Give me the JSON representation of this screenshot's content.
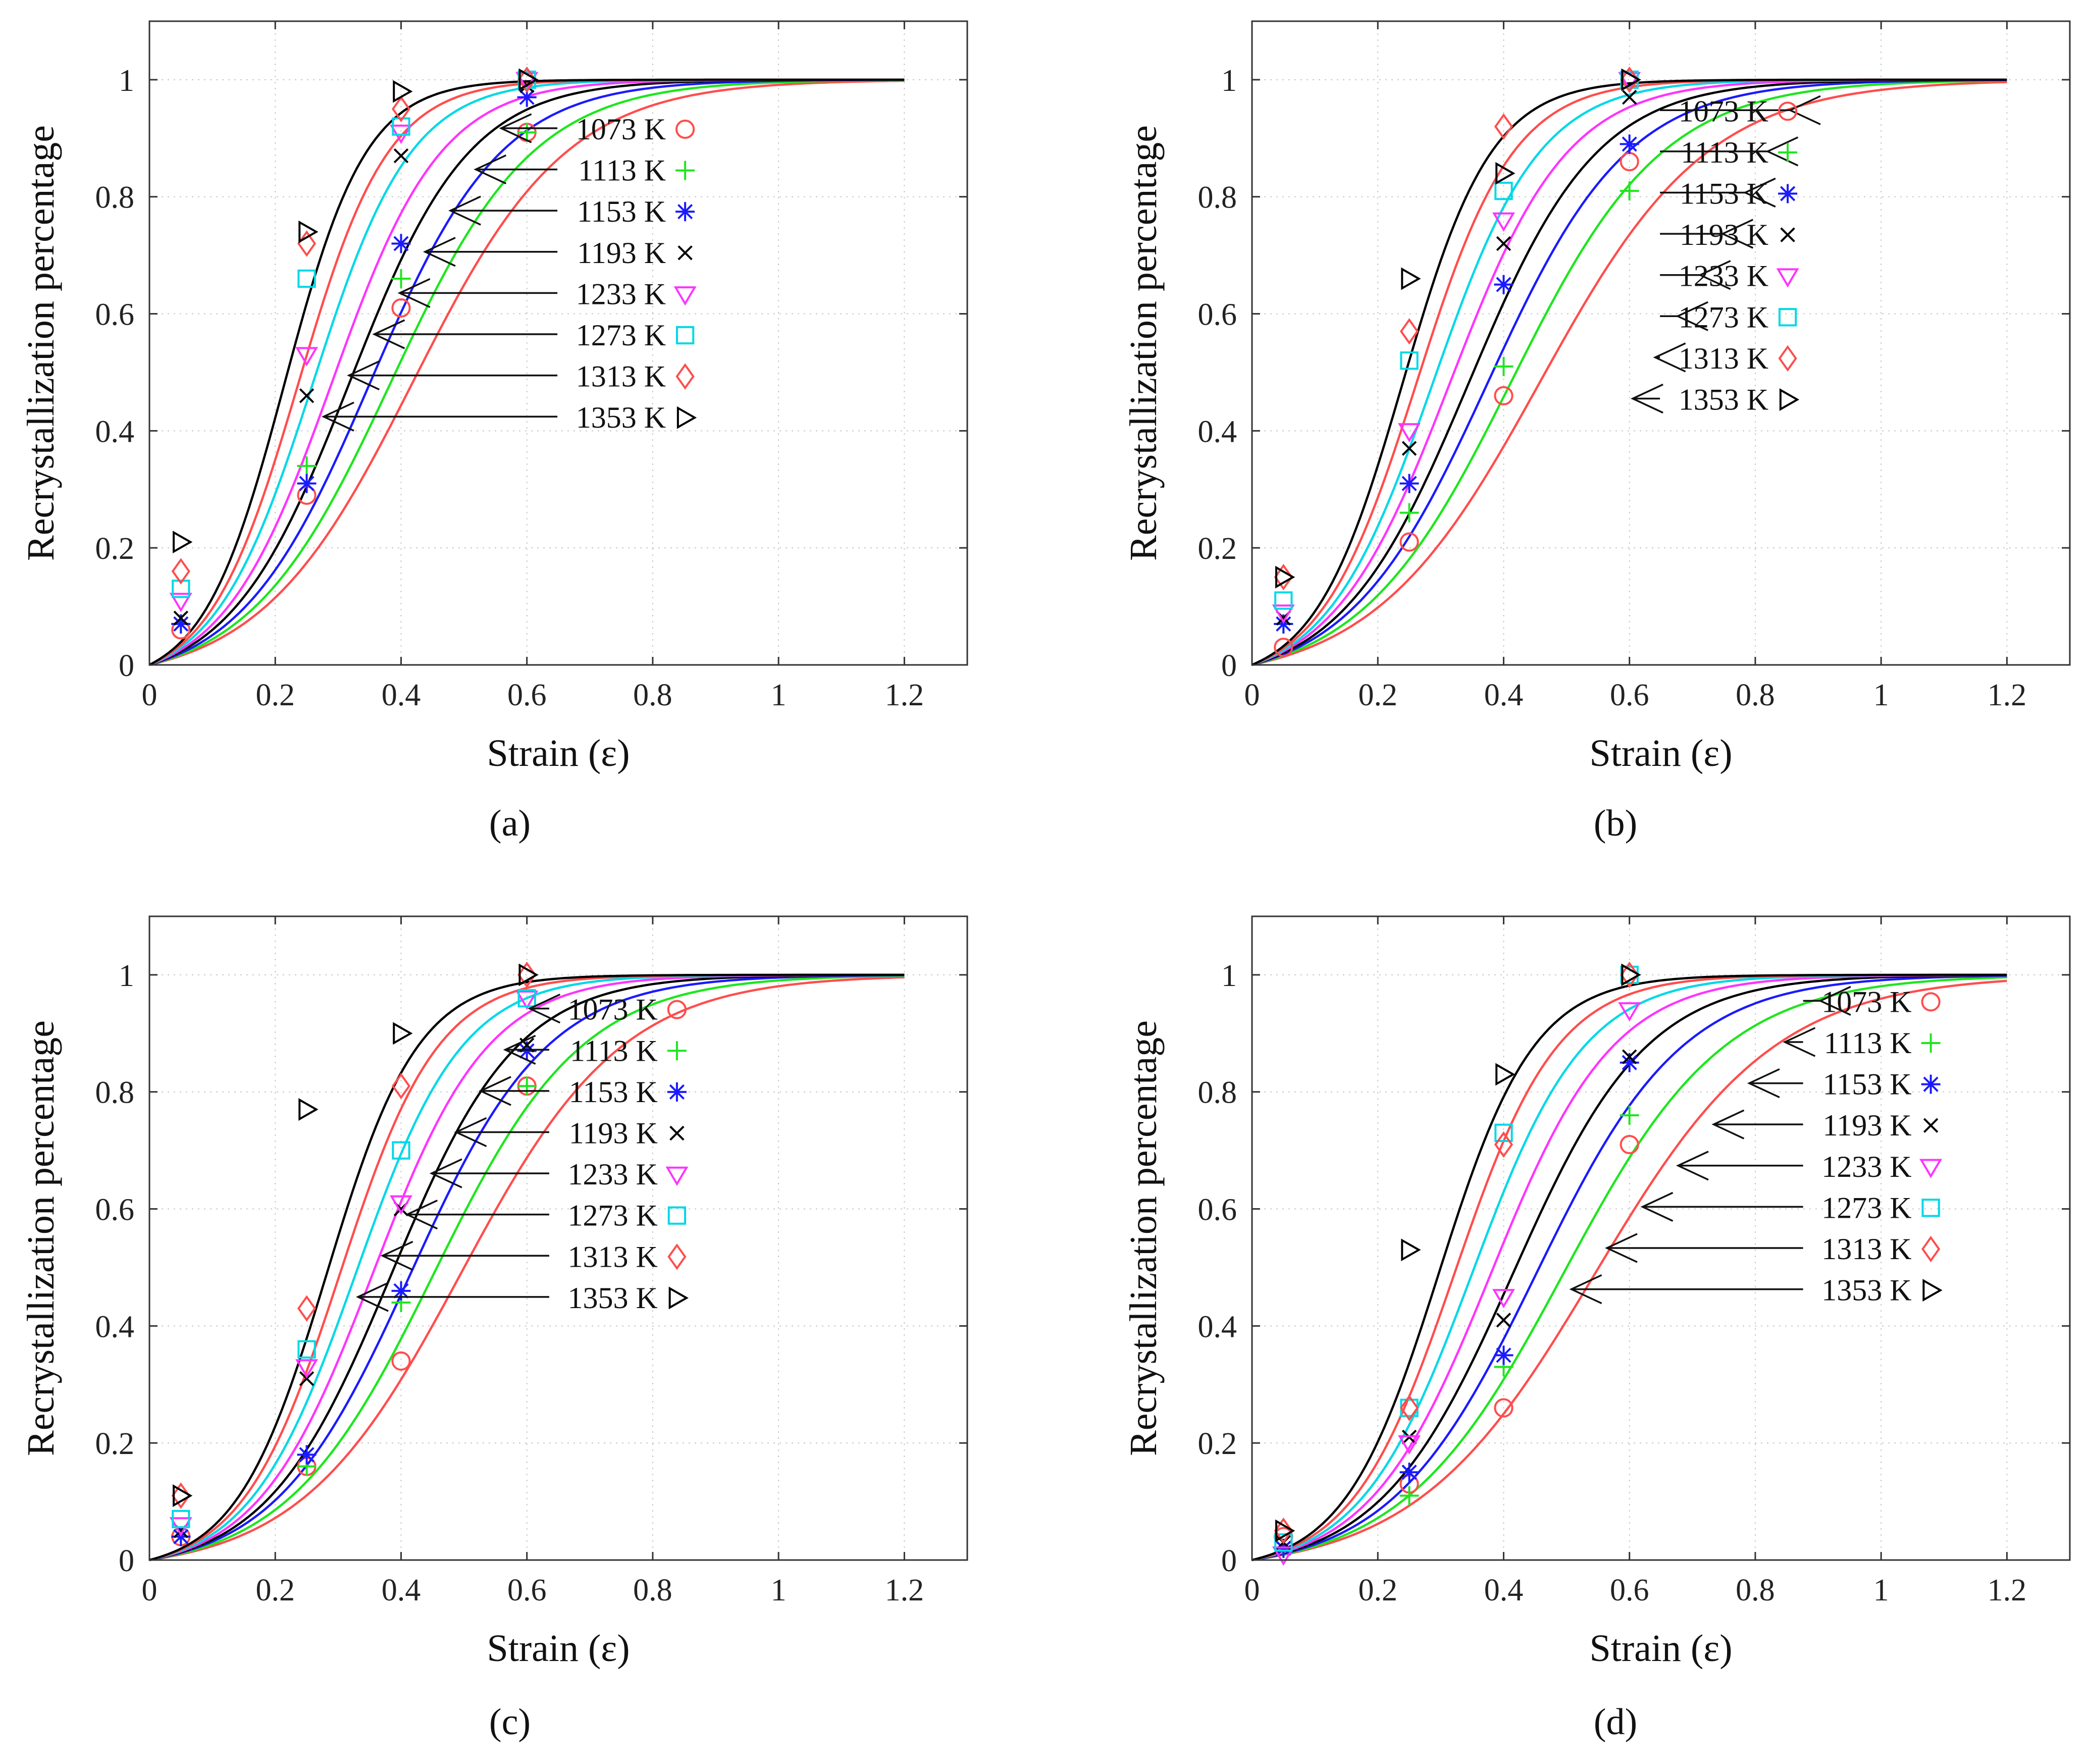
{
  "figure": {
    "panels": [
      "(a)",
      "(b)",
      "(c)",
      "(d)"
    ]
  },
  "chart_data": [
    {
      "type": "scatter",
      "panel_label": "a",
      "xlabel": "Strain (ε)",
      "ylabel": "Recrystallization percentage",
      "xlim": [
        0,
        1.3
      ],
      "ylim": [
        0,
        1.1
      ],
      "xticks": [
        "0",
        "0.2",
        "0.4",
        "0.6",
        "0.8",
        "1",
        "1.2"
      ],
      "yticks": [
        "0",
        "0.2",
        "0.4",
        "0.6",
        "0.8",
        "1"
      ],
      "grid": true,
      "legend_position": "right",
      "series": [
        {
          "name": "1073 K",
          "color": "#ff4d4d",
          "marker": "circle",
          "points": [
            [
              0.05,
              0.06
            ],
            [
              0.25,
              0.29
            ],
            [
              0.4,
              0.61
            ],
            [
              0.6,
              0.91
            ]
          ],
          "curve": {
            "x0": 0.419,
            "k": 8.19,
            "xmax": 1.2
          }
        },
        {
          "name": "1113 K",
          "color": "#1de61d",
          "marker": "plus",
          "points": [
            [
              0.05,
              0.07
            ],
            [
              0.25,
              0.34
            ],
            [
              0.4,
              0.66
            ],
            [
              0.6,
              0.91
            ]
          ],
          "curve": {
            "x0": 0.384,
            "k": 8.86,
            "xmax": 1.2
          }
        },
        {
          "name": "1153 K",
          "color": "#1a1aff",
          "marker": "asterisk",
          "points": [
            [
              0.05,
              0.07
            ],
            [
              0.25,
              0.31
            ],
            [
              0.4,
              0.72
            ],
            [
              0.6,
              0.97
            ]
          ],
          "curve": {
            "x0": 0.351,
            "k": 9.6,
            "xmax": 1.2
          }
        },
        {
          "name": "1193 K",
          "color": "#000000",
          "marker": "x",
          "points": [
            [
              0.05,
              0.08
            ],
            [
              0.25,
              0.46
            ],
            [
              0.4,
              0.87
            ],
            [
              0.6,
              0.99
            ]
          ],
          "curve": {
            "x0": 0.318,
            "k": 10.5,
            "xmax": 1.2
          }
        },
        {
          "name": "1233 K",
          "color": "#ff33ff",
          "marker": "triangle-down",
          "points": [
            [
              0.05,
              0.11
            ],
            [
              0.25,
              0.53
            ],
            [
              0.4,
              0.91
            ],
            [
              0.6,
              1.0
            ]
          ],
          "curve": {
            "x0": 0.29,
            "k": 11.5,
            "xmax": 1.2
          }
        },
        {
          "name": "1273 K",
          "color": "#00d8e6",
          "marker": "square",
          "points": [
            [
              0.05,
              0.13
            ],
            [
              0.25,
              0.66
            ],
            [
              0.4,
              0.92
            ],
            [
              0.6,
              1.0
            ]
          ],
          "curve": {
            "x0": 0.26,
            "k": 12.8,
            "xmax": 1.2
          }
        },
        {
          "name": "1313 K",
          "color": "#ff4d4d",
          "marker": "diamond",
          "points": [
            [
              0.05,
              0.16
            ],
            [
              0.25,
              0.72
            ],
            [
              0.4,
              0.95
            ],
            [
              0.6,
              1.0
            ]
          ],
          "curve": {
            "x0": 0.237,
            "k": 14.0,
            "xmax": 1.2
          }
        },
        {
          "name": "1353 K",
          "color": "#000000",
          "marker": "triangle-right",
          "points": [
            [
              0.05,
              0.21
            ],
            [
              0.25,
              0.74
            ],
            [
              0.4,
              0.98
            ],
            [
              0.6,
              1.0
            ]
          ],
          "curve": {
            "x0": 0.215,
            "k": 15.4,
            "xmax": 1.2
          }
        }
      ]
    },
    {
      "type": "scatter",
      "panel_label": "b",
      "xlabel": "Strain (ε)",
      "ylabel": "Recrystallization percentage",
      "xlim": [
        0,
        1.3
      ],
      "ylim": [
        0,
        1.1
      ],
      "xticks": [
        "0",
        "0.2",
        "0.4",
        "0.6",
        "0.8",
        "1",
        "1.2"
      ],
      "yticks": [
        "0",
        "0.2",
        "0.4",
        "0.6",
        "0.8",
        "1"
      ],
      "grid": true,
      "legend_position": "right",
      "series": [
        {
          "name": "1073 K",
          "color": "#ff4d4d",
          "marker": "circle",
          "points": [
            [
              0.05,
              0.03
            ],
            [
              0.25,
              0.21
            ],
            [
              0.4,
              0.46
            ],
            [
              0.6,
              0.86
            ]
          ],
          "curve": {
            "x0": 0.458,
            "k": 7.5,
            "xmax": 1.2
          }
        },
        {
          "name": "1113 K",
          "color": "#1de61d",
          "marker": "plus",
          "points": [
            [
              0.05,
              0.07
            ],
            [
              0.25,
              0.26
            ],
            [
              0.4,
              0.51
            ],
            [
              0.6,
              0.81
            ]
          ],
          "curve": {
            "x0": 0.412,
            "k": 8.3,
            "xmax": 1.2
          }
        },
        {
          "name": "1153 K",
          "color": "#1a1aff",
          "marker": "asterisk",
          "points": [
            [
              0.05,
              0.07
            ],
            [
              0.25,
              0.31
            ],
            [
              0.4,
              0.65
            ],
            [
              0.6,
              0.89
            ]
          ],
          "curve": {
            "x0": 0.375,
            "k": 9.0,
            "xmax": 1.2
          }
        },
        {
          "name": "1193 K",
          "color": "#000000",
          "marker": "x",
          "points": [
            [
              0.05,
              0.08
            ],
            [
              0.25,
              0.37
            ],
            [
              0.4,
              0.72
            ],
            [
              0.6,
              0.97
            ]
          ],
          "curve": {
            "x0": 0.345,
            "k": 9.8,
            "xmax": 1.2
          }
        },
        {
          "name": "1233 K",
          "color": "#ff33ff",
          "marker": "triangle-down",
          "points": [
            [
              0.05,
              0.09
            ],
            [
              0.25,
              0.4
            ],
            [
              0.4,
              0.76
            ],
            [
              0.6,
              1.0
            ]
          ],
          "curve": {
            "x0": 0.315,
            "k": 10.7,
            "xmax": 1.2
          }
        },
        {
          "name": "1273 K",
          "color": "#00d8e6",
          "marker": "square",
          "points": [
            [
              0.05,
              0.11
            ],
            [
              0.25,
              0.52
            ],
            [
              0.4,
              0.81
            ],
            [
              0.6,
              1.0
            ]
          ],
          "curve": {
            "x0": 0.288,
            "k": 11.8,
            "xmax": 1.2
          }
        },
        {
          "name": "1313 K",
          "color": "#ff4d4d",
          "marker": "diamond",
          "points": [
            [
              0.05,
              0.15
            ],
            [
              0.25,
              0.57
            ],
            [
              0.4,
              0.92
            ],
            [
              0.6,
              1.0
            ]
          ],
          "curve": {
            "x0": 0.262,
            "k": 13.0,
            "xmax": 1.2
          }
        },
        {
          "name": "1353 K",
          "color": "#000000",
          "marker": "triangle-right",
          "points": [
            [
              0.05,
              0.15
            ],
            [
              0.25,
              0.66
            ],
            [
              0.4,
              0.84
            ],
            [
              0.6,
              1.0
            ]
          ],
          "curve": {
            "x0": 0.24,
            "k": 14.2,
            "xmax": 1.2
          }
        }
      ]
    },
    {
      "type": "scatter",
      "panel_label": "c",
      "xlabel": "Strain (ε)",
      "ylabel": "Recrystallization percentage",
      "xlim": [
        0,
        1.3
      ],
      "ylim": [
        0,
        1.1
      ],
      "xticks": [
        "0",
        "0.2",
        "0.4",
        "0.6",
        "0.8",
        "1",
        "1.2"
      ],
      "yticks": [
        "0",
        "0.2",
        "0.4",
        "0.6",
        "0.8",
        "1"
      ],
      "grid": true,
      "legend_position": "right",
      "series": [
        {
          "name": "1073 K",
          "color": "#ff4d4d",
          "marker": "circle",
          "points": [
            [
              0.05,
              0.04
            ],
            [
              0.25,
              0.16
            ],
            [
              0.4,
              0.34
            ],
            [
              0.6,
              0.81
            ]
          ],
          "curve": {
            "x0": 0.495,
            "k": 7.8,
            "xmax": 1.2
          }
        },
        {
          "name": "1113 K",
          "color": "#1de61d",
          "marker": "plus",
          "points": [
            [
              0.05,
              0.04
            ],
            [
              0.25,
              0.16
            ],
            [
              0.4,
              0.44
            ],
            [
              0.6,
              0.81
            ]
          ],
          "curve": {
            "x0": 0.452,
            "k": 8.5,
            "xmax": 1.2
          }
        },
        {
          "name": "1153 K",
          "color": "#1a1aff",
          "marker": "asterisk",
          "points": [
            [
              0.05,
              0.04
            ],
            [
              0.25,
              0.18
            ],
            [
              0.4,
              0.46
            ],
            [
              0.6,
              0.87
            ]
          ],
          "curve": {
            "x0": 0.415,
            "k": 9.2,
            "xmax": 1.2
          }
        },
        {
          "name": "1193 K",
          "color": "#000000",
          "marker": "x",
          "points": [
            [
              0.05,
              0.05
            ],
            [
              0.25,
              0.31
            ],
            [
              0.4,
              0.6
            ],
            [
              0.6,
              0.88
            ]
          ],
          "curve": {
            "x0": 0.385,
            "k": 10.0,
            "xmax": 1.2
          }
        },
        {
          "name": "1233 K",
          "color": "#ff33ff",
          "marker": "triangle-down",
          "points": [
            [
              0.05,
              0.06
            ],
            [
              0.25,
              0.33
            ],
            [
              0.4,
              0.61
            ],
            [
              0.6,
              0.96
            ]
          ],
          "curve": {
            "x0": 0.355,
            "k": 10.9,
            "xmax": 1.2
          }
        },
        {
          "name": "1273 K",
          "color": "#00d8e6",
          "marker": "square",
          "points": [
            [
              0.05,
              0.07
            ],
            [
              0.25,
              0.36
            ],
            [
              0.4,
              0.7
            ],
            [
              0.6,
              0.96
            ]
          ],
          "curve": {
            "x0": 0.328,
            "k": 11.8,
            "xmax": 1.2
          }
        },
        {
          "name": "1313 K",
          "color": "#ff4d4d",
          "marker": "diamond",
          "points": [
            [
              0.05,
              0.11
            ],
            [
              0.25,
              0.43
            ],
            [
              0.4,
              0.81
            ],
            [
              0.6,
              1.0
            ]
          ],
          "curve": {
            "x0": 0.303,
            "k": 12.8,
            "xmax": 1.2
          }
        },
        {
          "name": "1353 K",
          "color": "#000000",
          "marker": "triangle-right",
          "points": [
            [
              0.05,
              0.11
            ],
            [
              0.25,
              0.77
            ],
            [
              0.4,
              0.9
            ],
            [
              0.6,
              1.0
            ]
          ],
          "curve": {
            "x0": 0.282,
            "k": 13.8,
            "xmax": 1.2
          }
        }
      ]
    },
    {
      "type": "scatter",
      "panel_label": "d",
      "xlabel": "Strain (ε)",
      "ylabel": "Recrystallization percentage",
      "xlim": [
        0,
        1.3
      ],
      "ylim": [
        0,
        1.1
      ],
      "xticks": [
        "0",
        "0.2",
        "0.4",
        "0.6",
        "0.8",
        "1",
        "1.2"
      ],
      "yticks": [
        "0",
        "0.2",
        "0.4",
        "0.6",
        "0.8",
        "1"
      ],
      "grid": true,
      "legend_position": "right",
      "series": [
        {
          "name": "1073 K",
          "color": "#ff4d4d",
          "marker": "circle",
          "points": [
            [
              0.05,
              0.04
            ],
            [
              0.25,
              0.13
            ],
            [
              0.4,
              0.26
            ],
            [
              0.6,
              0.71
            ]
          ],
          "curve": {
            "x0": 0.545,
            "k": 7.0,
            "xmax": 1.2
          }
        },
        {
          "name": "1113 K",
          "color": "#1de61d",
          "marker": "plus",
          "points": [
            [
              0.05,
              0.02
            ],
            [
              0.25,
              0.11
            ],
            [
              0.4,
              0.33
            ],
            [
              0.6,
              0.76
            ]
          ],
          "curve": {
            "x0": 0.495,
            "k": 7.8,
            "xmax": 1.2
          }
        },
        {
          "name": "1153 K",
          "color": "#1a1aff",
          "marker": "asterisk",
          "points": [
            [
              0.05,
              0.02
            ],
            [
              0.25,
              0.15
            ],
            [
              0.4,
              0.35
            ],
            [
              0.6,
              0.85
            ]
          ],
          "curve": {
            "x0": 0.452,
            "k": 8.6,
            "xmax": 1.2
          }
        },
        {
          "name": "1193 K",
          "color": "#000000",
          "marker": "x",
          "points": [
            [
              0.05,
              0.03
            ],
            [
              0.25,
              0.21
            ],
            [
              0.4,
              0.41
            ],
            [
              0.6,
              0.86
            ]
          ],
          "curve": {
            "x0": 0.415,
            "k": 9.4,
            "xmax": 1.2
          }
        },
        {
          "name": "1233 K",
          "color": "#ff33ff",
          "marker": "triangle-down",
          "points": [
            [
              0.05,
              0.01
            ],
            [
              0.25,
              0.2
            ],
            [
              0.4,
              0.45
            ],
            [
              0.6,
              0.94
            ]
          ],
          "curve": {
            "x0": 0.38,
            "k": 10.3,
            "xmax": 1.2
          }
        },
        {
          "name": "1273 K",
          "color": "#00d8e6",
          "marker": "square",
          "points": [
            [
              0.05,
              0.03
            ],
            [
              0.25,
              0.26
            ],
            [
              0.4,
              0.73
            ],
            [
              0.6,
              1.0
            ]
          ],
          "curve": {
            "x0": 0.35,
            "k": 11.2,
            "xmax": 1.2
          }
        },
        {
          "name": "1313 K",
          "color": "#ff4d4d",
          "marker": "diamond",
          "points": [
            [
              0.05,
              0.05
            ],
            [
              0.25,
              0.26
            ],
            [
              0.4,
              0.71
            ],
            [
              0.6,
              1.0
            ]
          ],
          "curve": {
            "x0": 0.322,
            "k": 12.2,
            "xmax": 1.2
          }
        },
        {
          "name": "1353 K",
          "color": "#000000",
          "marker": "triangle-right",
          "points": [
            [
              0.05,
              0.05
            ],
            [
              0.25,
              0.53
            ],
            [
              0.4,
              0.83
            ],
            [
              0.6,
              1.0
            ]
          ],
          "curve": {
            "x0": 0.297,
            "k": 13.2,
            "xmax": 1.2
          }
        }
      ]
    }
  ]
}
